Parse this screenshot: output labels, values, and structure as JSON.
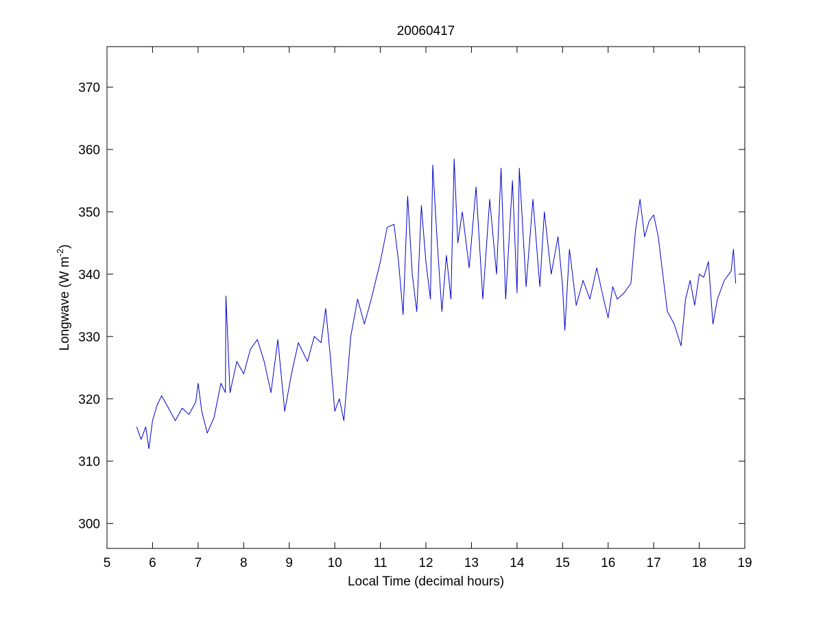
{
  "chart_data": {
    "type": "line",
    "title": "20060417",
    "xlabel": "Local Time (decimal hours)",
    "ylabel": {
      "main": "Longwave (W m",
      "superscript": "-2",
      "close": ")"
    },
    "xlim": [
      5,
      19
    ],
    "ylim": [
      296,
      376.5
    ],
    "xticks": [
      5,
      6,
      7,
      8,
      9,
      10,
      11,
      12,
      13,
      14,
      15,
      16,
      17,
      18,
      19
    ],
    "yticks": [
      300,
      310,
      320,
      330,
      340,
      350,
      360,
      370
    ],
    "grid": false,
    "series": [
      {
        "color": "#0000cc",
        "x": [
          5.65,
          5.75,
          5.85,
          5.92,
          6.0,
          6.1,
          6.2,
          6.35,
          6.5,
          6.65,
          6.8,
          6.95,
          7.0,
          7.08,
          7.2,
          7.35,
          7.5,
          7.6,
          7.61,
          7.7,
          7.85,
          8.0,
          8.15,
          8.3,
          8.45,
          8.6,
          8.75,
          8.9,
          9.05,
          9.2,
          9.4,
          9.55,
          9.7,
          9.8,
          9.9,
          10.0,
          10.1,
          10.2,
          10.35,
          10.5,
          10.65,
          10.8,
          11.0,
          11.15,
          11.3,
          11.4,
          11.5,
          11.6,
          11.7,
          11.8,
          11.9,
          12.0,
          12.1,
          12.15,
          12.25,
          12.35,
          12.45,
          12.55,
          12.62,
          12.7,
          12.8,
          12.95,
          13.1,
          13.25,
          13.4,
          13.55,
          13.65,
          13.75,
          13.9,
          14.0,
          14.05,
          14.2,
          14.35,
          14.5,
          14.6,
          14.75,
          14.9,
          15.0,
          15.05,
          15.15,
          15.3,
          15.45,
          15.6,
          15.75,
          15.9,
          16.0,
          16.1,
          16.2,
          16.35,
          16.5,
          16.6,
          16.7,
          16.8,
          16.9,
          17.0,
          17.1,
          17.2,
          17.3,
          17.45,
          17.6,
          17.7,
          17.8,
          17.9,
          18.0,
          18.1,
          18.2,
          18.3,
          18.4,
          18.55,
          18.7,
          18.75,
          18.8
        ],
        "values": [
          315.5,
          313.5,
          315.5,
          312.0,
          316.5,
          319.0,
          320.5,
          318.5,
          316.5,
          318.5,
          317.5,
          319.5,
          322.5,
          318.0,
          314.5,
          317.0,
          322.5,
          321.0,
          336.5,
          321.0,
          326.0,
          324.0,
          328.0,
          329.5,
          326.0,
          321.0,
          329.5,
          318.0,
          324.0,
          329.0,
          326.0,
          330.0,
          329.0,
          334.5,
          327.0,
          318.0,
          320.0,
          316.5,
          330.0,
          336.0,
          332.0,
          336.0,
          342.0,
          347.5,
          348.0,
          342.0,
          333.5,
          352.5,
          340.0,
          334.0,
          351.0,
          342.0,
          336.0,
          357.5,
          345.0,
          334.0,
          343.0,
          336.0,
          358.5,
          345.0,
          350.0,
          341.0,
          354.0,
          336.0,
          352.0,
          340.0,
          357.0,
          336.0,
          355.0,
          337.0,
          357.0,
          338.0,
          352.0,
          338.0,
          350.0,
          340.0,
          346.0,
          338.0,
          331.0,
          344.0,
          335.0,
          339.0,
          336.0,
          341.0,
          336.0,
          333.0,
          338.0,
          336.0,
          337.0,
          338.5,
          347.0,
          352.0,
          346.0,
          348.5,
          349.5,
          346.0,
          340.0,
          334.0,
          332.0,
          328.5,
          336.0,
          339.0,
          335.0,
          340.0,
          339.5,
          342.0,
          332.0,
          336.0,
          339.0,
          340.5,
          344.0,
          338.5
        ]
      }
    ]
  }
}
